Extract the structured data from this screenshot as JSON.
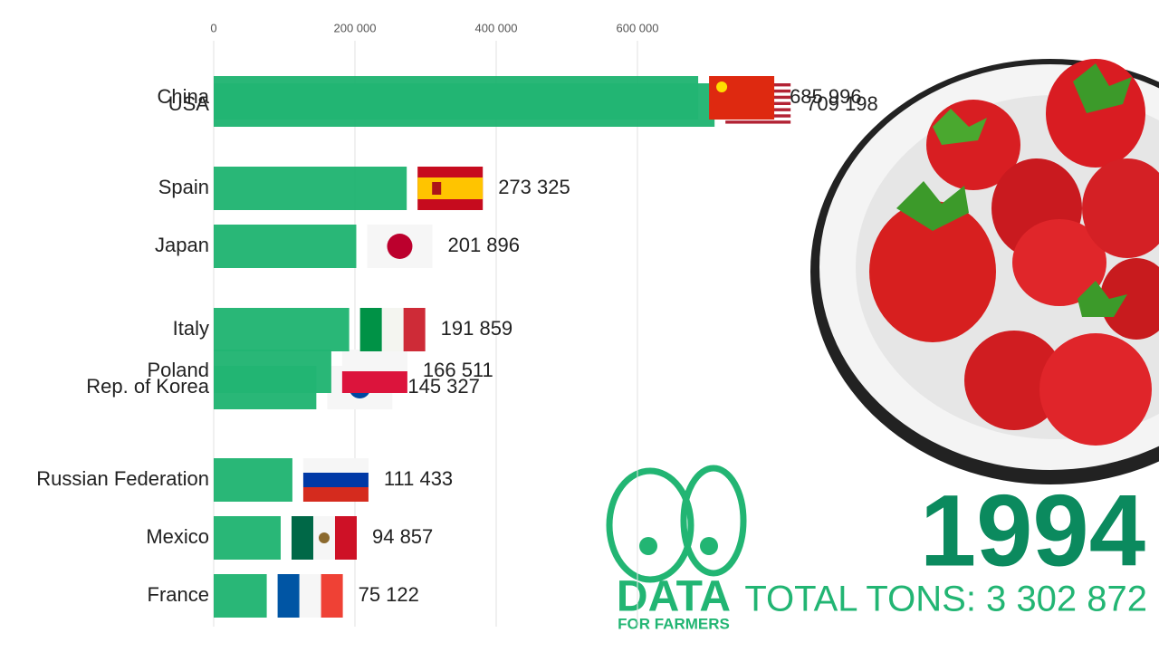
{
  "chart_data": {
    "type": "bar",
    "orientation": "horizontal",
    "categories": [
      "China",
      "USA",
      "Spain",
      "Japan",
      "Italy",
      "Poland",
      "Rep. of Korea",
      "Russian Federation",
      "Mexico",
      "France"
    ],
    "values": [
      685996,
      709198,
      273325,
      201896,
      191859,
      166511,
      145327,
      111433,
      94857,
      75122
    ],
    "value_labels": [
      "685 996",
      "709 198",
      "273 325",
      "201 896",
      "191 859",
      "166 511",
      "145 327",
      "111 433",
      "94 857",
      "75 122"
    ],
    "color": "#22b573",
    "xlim": [
      0,
      800000
    ],
    "xticks": [
      0,
      {
        "value": 200000,
        "label": "200 000"
      },
      {
        "value": 400000,
        "label": "400 000"
      },
      {
        "value": 600000,
        "label": "600 000"
      }
    ],
    "grid": true,
    "year": "1994",
    "total_text": "TOTAL TONS: 3 302 872"
  },
  "logo": {
    "title": "DATA",
    "subtitle": "FOR FARMERS"
  }
}
